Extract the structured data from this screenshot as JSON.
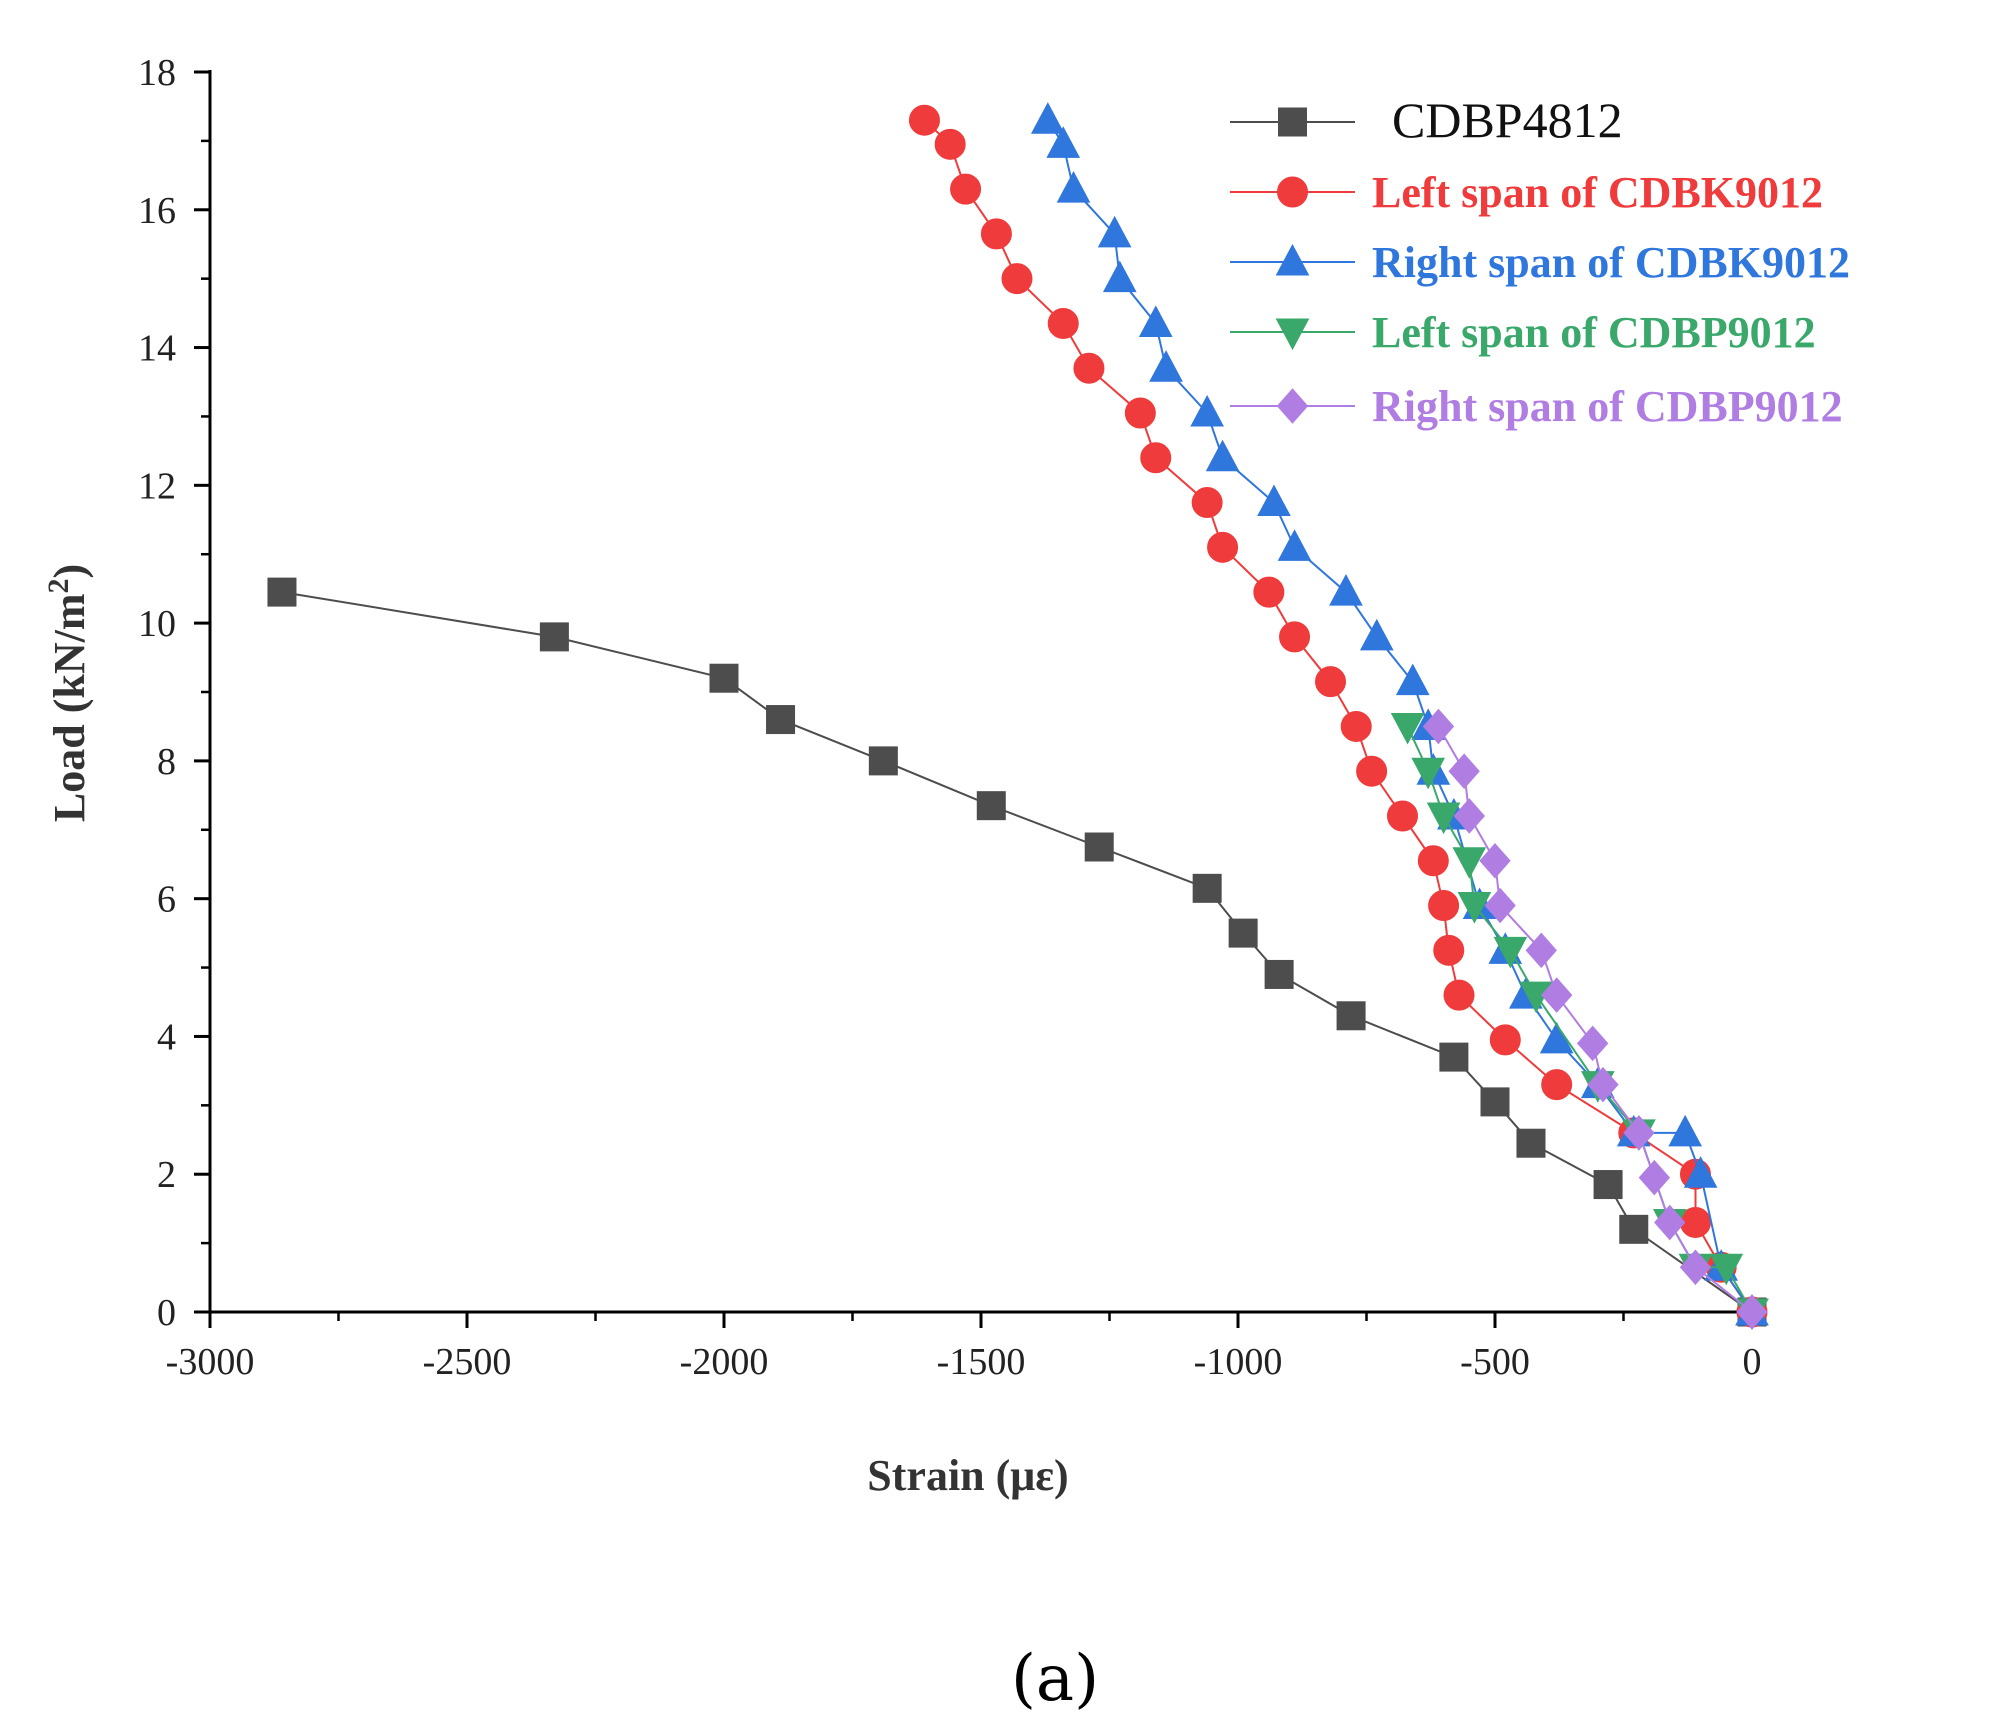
{
  "chart_data": {
    "type": "line",
    "title": "",
    "xlabel": "Strain (με)",
    "ylabel": "Load (kN/m²)",
    "ylabel_parts": {
      "main": "Load (kN/m",
      "sup": "2",
      "end": ")"
    },
    "xlim": [
      -3000,
      0
    ],
    "ylim": [
      0,
      18
    ],
    "x_ticks": [
      -3000,
      -2500,
      -2000,
      -1500,
      -1000,
      -500,
      0
    ],
    "y_ticks": [
      0,
      2,
      4,
      6,
      8,
      10,
      12,
      14,
      16,
      18
    ],
    "x_tick_labels": [
      "-3000",
      "-2500",
      "-2000",
      "-1500",
      "-1000",
      "-500",
      "0"
    ],
    "y_tick_labels": [
      "0",
      "2",
      "4",
      "6",
      "8",
      "10",
      "12",
      "14",
      "16",
      "18"
    ],
    "grid": false,
    "legend_position": "top-right",
    "caption": "(a)",
    "series": [
      {
        "name": "CDBP4812",
        "color": "#4d4d4d",
        "marker": "square",
        "x": [
          0,
          -230,
          -280,
          -430,
          -500,
          -580,
          -780,
          -920,
          -990,
          -1060,
          -1270,
          -1480,
          -1690,
          -1890,
          -2000,
          -2330,
          -2860
        ],
        "y": [
          0,
          1.2,
          1.85,
          2.45,
          3.05,
          3.7,
          4.3,
          4.9,
          5.5,
          6.15,
          6.75,
          7.35,
          8.0,
          8.6,
          9.2,
          9.8,
          10.45
        ]
      },
      {
        "name": "Left span of CDBK9012",
        "color": "#ef3b3b",
        "marker": "circle",
        "x": [
          0,
          -60,
          -110,
          -110,
          -230,
          -380,
          -480,
          -570,
          -590,
          -600,
          -620,
          -680,
          -740,
          -770,
          -820,
          -890,
          -940,
          -1030,
          -1060,
          -1160,
          -1190,
          -1290,
          -1340,
          -1430,
          -1470,
          -1530,
          -1560,
          -1610
        ],
        "y": [
          0,
          0.65,
          1.3,
          2.0,
          2.6,
          3.3,
          3.95,
          4.6,
          5.25,
          5.9,
          6.55,
          7.2,
          7.85,
          8.5,
          9.15,
          9.8,
          10.45,
          11.1,
          11.75,
          12.4,
          13.05,
          13.7,
          14.35,
          15.0,
          15.65,
          16.3,
          16.95,
          17.3
        ]
      },
      {
        "name": "Right span of CDBK9012",
        "color": "#2f76dd",
        "marker": "triangle-up",
        "x": [
          0,
          -60,
          -100,
          -130,
          -230,
          -300,
          -380,
          -440,
          -480,
          -530,
          -580,
          -620,
          -630,
          -660,
          -730,
          -790,
          -890,
          -930,
          -1030,
          -1060,
          -1140,
          -1160,
          -1230,
          -1240,
          -1320,
          -1340,
          -1370
        ],
        "y": [
          0,
          0.65,
          2.0,
          2.6,
          2.6,
          3.3,
          3.95,
          4.6,
          5.25,
          5.9,
          7.2,
          7.85,
          8.5,
          9.15,
          9.8,
          10.45,
          11.1,
          11.75,
          12.4,
          13.05,
          13.7,
          14.35,
          15.0,
          15.65,
          16.3,
          16.95,
          17.3
        ]
      },
      {
        "name": "Left span of CDBP9012",
        "color": "#3aa86b",
        "marker": "triangle-down",
        "x": [
          0,
          -50,
          -110,
          -160,
          -220,
          -300,
          -420,
          -470,
          -540,
          -550,
          -600,
          -630,
          -670
        ],
        "y": [
          0,
          0.65,
          0.65,
          1.3,
          2.6,
          3.3,
          4.6,
          5.25,
          5.9,
          6.55,
          7.2,
          7.85,
          8.5
        ]
      },
      {
        "name": "Right span of CDBP9012",
        "color": "#b07de3",
        "marker": "diamond",
        "x": [
          0,
          -110,
          -160,
          -190,
          -220,
          -290,
          -310,
          -380,
          -410,
          -490,
          -500,
          -550,
          -560,
          -610
        ],
        "y": [
          0,
          0.65,
          1.3,
          1.95,
          2.6,
          3.3,
          3.9,
          4.6,
          5.25,
          5.9,
          6.55,
          7.2,
          7.85,
          8.5
        ]
      }
    ]
  }
}
